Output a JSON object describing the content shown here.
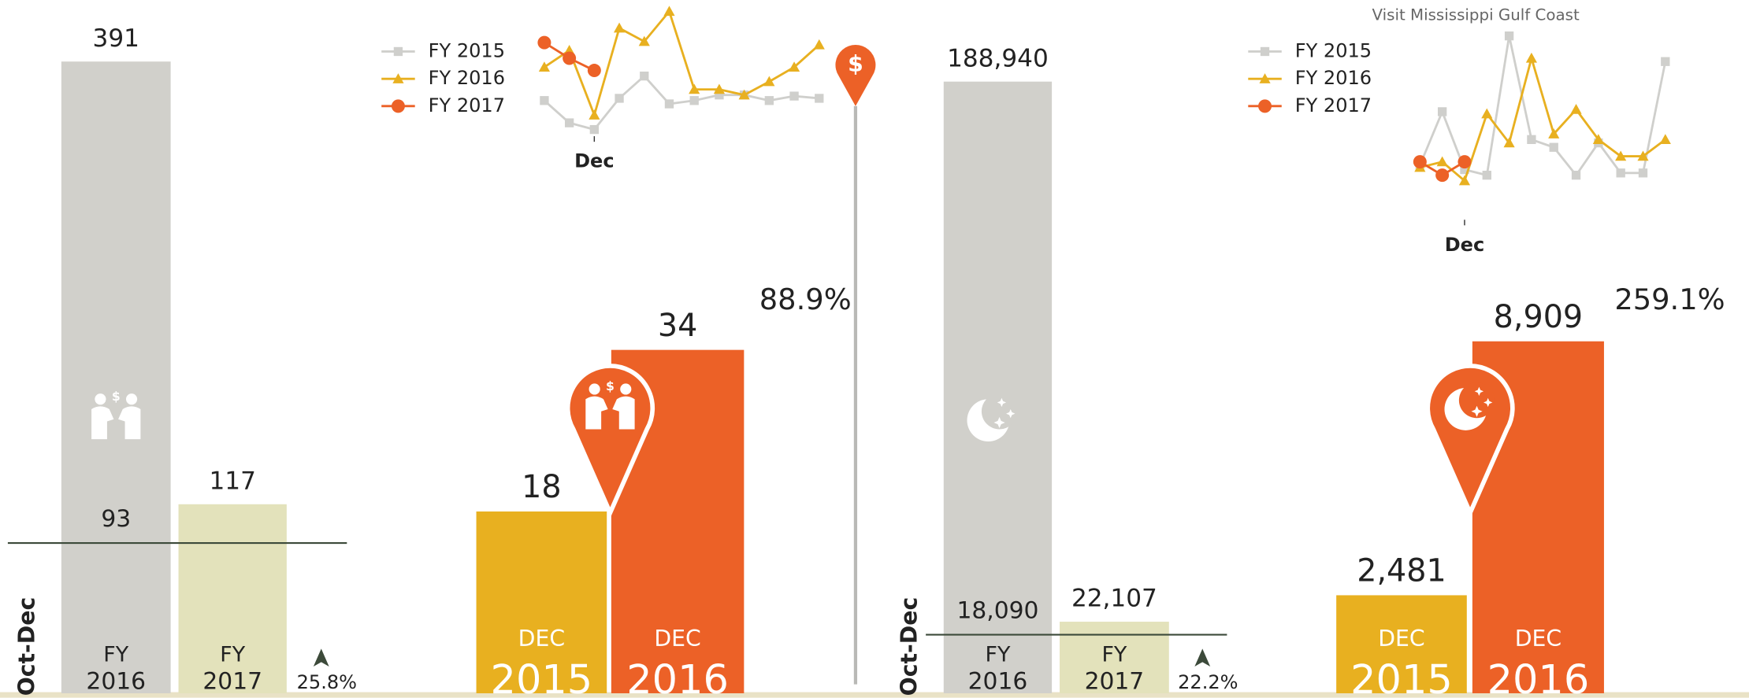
{
  "chart_data": [
    {
      "type": "bar",
      "axis_label": "Oct-Dec",
      "categories": [
        [
          "FY",
          "2016"
        ],
        [
          "FY",
          "2017"
        ]
      ],
      "values": [
        391,
        117
      ],
      "colors": [
        "#d1d0cb",
        "#e3e2bb"
      ],
      "ylim": [
        0,
        391
      ],
      "reference": 93,
      "change": "25.8%"
    },
    {
      "type": "line",
      "categories": [
        null,
        null,
        "Dec",
        null,
        null,
        null,
        null,
        null,
        null,
        null,
        null,
        null
      ],
      "ylim": [
        0,
        120
      ],
      "series": [
        {
          "name": "FY 2015",
          "color": "#cfcfcc",
          "marker": "square",
          "values": [
            35,
            15,
            9,
            37,
            57,
            32,
            35,
            40,
            40,
            35,
            39,
            37
          ]
        },
        {
          "name": "FY 2016",
          "color": "#e8b020",
          "marker": "triangle",
          "values": [
            65,
            80,
            22,
            100,
            88,
            115,
            45,
            45,
            40,
            52,
            65,
            85
          ]
        },
        {
          "name": "FY 2017",
          "color": "#ec6127",
          "marker": "circle",
          "values": [
            87,
            73,
            62,
            null,
            null,
            null,
            null,
            null,
            null,
            null,
            null,
            null
          ]
        }
      ]
    },
    {
      "type": "bar",
      "pin": true,
      "categories": [
        [
          "DEC",
          "2015"
        ],
        [
          "DEC",
          "2016"
        ]
      ],
      "values": [
        18,
        34
      ],
      "colors": [
        "#e8b020",
        "#ec6127"
      ],
      "ylim": [
        0,
        62
      ],
      "change": "88.9%"
    },
    {
      "type": "bar",
      "axis_label": "Oct-Dec",
      "categories": [
        [
          "FY",
          "2016"
        ],
        [
          "FY",
          "2017"
        ]
      ],
      "values": [
        188940,
        22107
      ],
      "value_labels": [
        "188,940",
        "22,107"
      ],
      "colors": [
        "#d1d0cb",
        "#e3e2bb"
      ],
      "ylim": [
        0,
        188940
      ],
      "reference": 18090,
      "reference_label": "18,090",
      "change": "22.2%"
    },
    {
      "type": "line",
      "title": "Visit Mississippi Gulf Coast",
      "categories": [
        null,
        null,
        "Dec",
        null,
        null,
        null,
        null,
        null,
        null,
        null,
        null,
        null
      ],
      "ylim": [
        0,
        175
      ],
      "series": [
        {
          "name": "FY 2015",
          "color": "#cfcfcc",
          "marker": "square",
          "values": [
            52,
            100,
            48,
            43,
            168,
            75,
            68,
            43,
            72,
            45,
            45,
            145
          ]
        },
        {
          "name": "FY 2016",
          "color": "#e8b020",
          "marker": "triangle",
          "values": [
            50,
            55,
            38,
            98,
            72,
            148,
            80,
            102,
            75,
            60,
            60,
            75
          ]
        },
        {
          "name": "FY 2017",
          "color": "#ec6127",
          "marker": "circle",
          "values": [
            55,
            43,
            55,
            null,
            null,
            null,
            null,
            null,
            null,
            null,
            null,
            null
          ]
        }
      ]
    },
    {
      "type": "bar",
      "pin": true,
      "categories": [
        [
          "DEC",
          "2015"
        ],
        [
          "DEC",
          "2016"
        ]
      ],
      "values": [
        2481,
        8909
      ],
      "value_labels": [
        "2,481",
        "8,909"
      ],
      "colors": [
        "#e8b020",
        "#ec6127"
      ],
      "ylim": [
        0,
        15850
      ],
      "change": "259.1%"
    }
  ]
}
